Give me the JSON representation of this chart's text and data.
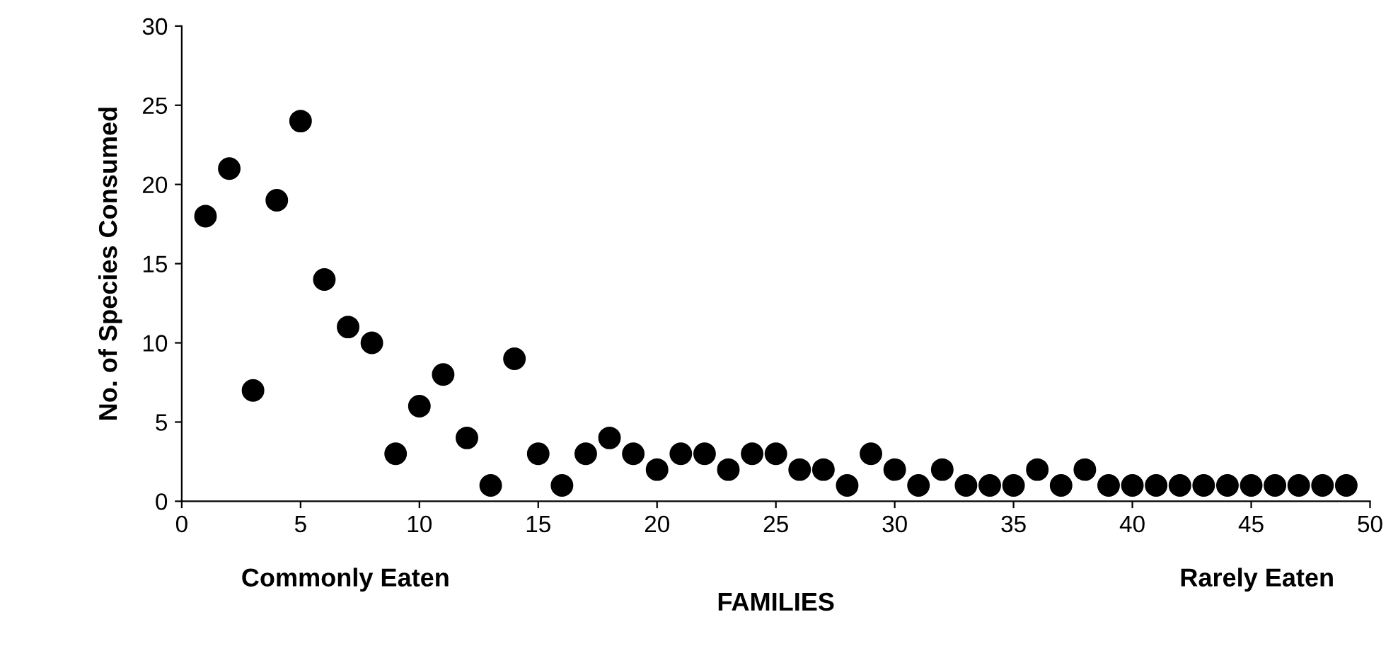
{
  "chart_data": {
    "type": "scatter",
    "xlabel": "FAMILIES",
    "ylabel": "No. of Species Consumed",
    "x": [
      1,
      2,
      3,
      4,
      5,
      6,
      7,
      8,
      9,
      10,
      11,
      12,
      13,
      14,
      15,
      16,
      17,
      18,
      19,
      20,
      21,
      22,
      23,
      24,
      25,
      26,
      27,
      28,
      29,
      30,
      31,
      32,
      33,
      34,
      35,
      36,
      37,
      38,
      39,
      40,
      41,
      42,
      43,
      44,
      45,
      46,
      47,
      48,
      49
    ],
    "series": [
      {
        "color": "#000000",
        "values": [
          18,
          21,
          7,
          19,
          24,
          14,
          11,
          10,
          3,
          6,
          8,
          4,
          1,
          9,
          3,
          1,
          3,
          4,
          3,
          2,
          3,
          3,
          2,
          3,
          3,
          2,
          2,
          1,
          3,
          2,
          1,
          2,
          1,
          1,
          1,
          2,
          1,
          2,
          1,
          1,
          1,
          1,
          1,
          1,
          1,
          1,
          1,
          1,
          1
        ]
      }
    ],
    "xlim": [
      0,
      50
    ],
    "xticks": [
      0,
      5,
      10,
      15,
      20,
      25,
      30,
      35,
      40,
      45,
      50
    ],
    "ylim": [
      0,
      30
    ],
    "yticks": [
      0,
      5,
      10,
      15,
      20,
      25,
      30
    ],
    "marker": "circle",
    "grid": false,
    "annotations": [
      "Commonly Eaten",
      "Rarely Eaten"
    ]
  }
}
